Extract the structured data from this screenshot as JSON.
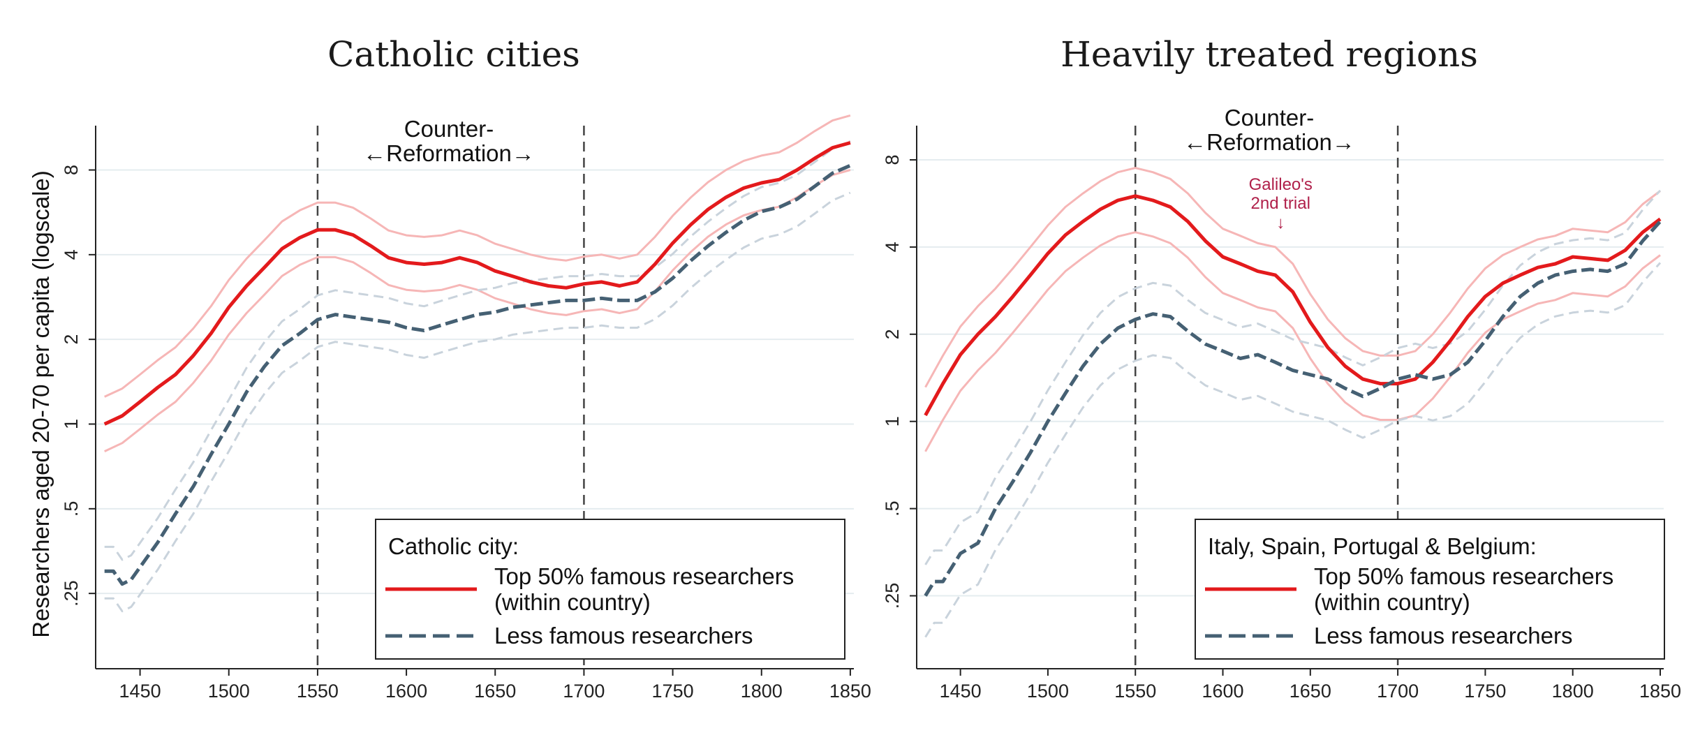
{
  "ylabel": "Researchers aged 20-70 per capita (logscale)",
  "colors": {
    "famous": "#e31a1c",
    "famous_ci": "#f6b6b6",
    "less": "#456073",
    "less_ci": "#c9d3dc",
    "grid": "#e4ecef",
    "vline": "#444444",
    "annotation": "#b0204a"
  },
  "chart_data": [
    {
      "type": "line",
      "title": "Catholic cities",
      "xlabel": "",
      "ylabel": "Researchers aged 20-70 per capita (logscale)",
      "yscale": "log",
      "xlim": [
        1425,
        1852
      ],
      "ylim": [
        0.135,
        11.5
      ],
      "xticks": [
        1450,
        1500,
        1550,
        1600,
        1650,
        1700,
        1750,
        1800,
        1850
      ],
      "yticks": [
        {
          "value": 0.25,
          "label": ".25"
        },
        {
          "value": 0.5,
          "label": ".5"
        },
        {
          "value": 1,
          "label": "1"
        },
        {
          "value": 2,
          "label": "2"
        },
        {
          "value": 4,
          "label": "4"
        },
        {
          "value": 8,
          "label": "8"
        }
      ],
      "grid": true,
      "vlines": [
        1550,
        1700
      ],
      "annotation": {
        "line1": "Counter-",
        "line2": "←Reformation→"
      },
      "legend": {
        "title": "Catholic city:",
        "items": [
          "Top 50% famous researchers",
          "(within country)",
          "Less famous researchers"
        ],
        "position": "bottom-right"
      },
      "series": [
        {
          "name": "Top 50% famous researchers (within country)",
          "style": "solid",
          "band": [
            0.8,
            1.25
          ],
          "x": [
            1430,
            1440,
            1450,
            1460,
            1470,
            1480,
            1490,
            1500,
            1510,
            1520,
            1530,
            1540,
            1550,
            1560,
            1570,
            1580,
            1590,
            1600,
            1610,
            1620,
            1630,
            1640,
            1650,
            1660,
            1670,
            1680,
            1690,
            1700,
            1710,
            1720,
            1730,
            1740,
            1750,
            1760,
            1770,
            1780,
            1790,
            1800,
            1810,
            1820,
            1830,
            1840,
            1850
          ],
          "y": [
            1.0,
            1.07,
            1.2,
            1.35,
            1.5,
            1.75,
            2.1,
            2.6,
            3.1,
            3.6,
            4.2,
            4.6,
            4.9,
            4.9,
            4.7,
            4.3,
            3.9,
            3.75,
            3.7,
            3.75,
            3.9,
            3.75,
            3.5,
            3.35,
            3.2,
            3.1,
            3.05,
            3.15,
            3.2,
            3.1,
            3.2,
            3.7,
            4.4,
            5.1,
            5.8,
            6.4,
            6.9,
            7.2,
            7.4,
            8.0,
            8.8,
            9.6,
            10.0
          ]
        },
        {
          "name": "Less famous researchers",
          "style": "dashed",
          "band": [
            0.8,
            1.22
          ],
          "x": [
            1430,
            1435,
            1440,
            1445,
            1450,
            1460,
            1470,
            1480,
            1490,
            1500,
            1510,
            1520,
            1530,
            1540,
            1550,
            1560,
            1570,
            1580,
            1590,
            1600,
            1610,
            1620,
            1630,
            1640,
            1650,
            1660,
            1670,
            1680,
            1690,
            1700,
            1710,
            1720,
            1730,
            1740,
            1750,
            1760,
            1770,
            1780,
            1790,
            1800,
            1810,
            1820,
            1830,
            1840,
            1850
          ],
          "y": [
            0.3,
            0.3,
            0.27,
            0.28,
            0.31,
            0.38,
            0.48,
            0.6,
            0.78,
            1.0,
            1.3,
            1.6,
            1.9,
            2.1,
            2.35,
            2.45,
            2.4,
            2.35,
            2.3,
            2.2,
            2.15,
            2.25,
            2.35,
            2.45,
            2.5,
            2.6,
            2.65,
            2.7,
            2.75,
            2.75,
            2.8,
            2.75,
            2.75,
            2.95,
            3.3,
            3.8,
            4.3,
            4.8,
            5.3,
            5.7,
            5.9,
            6.3,
            7.0,
            7.8,
            8.3
          ]
        }
      ]
    },
    {
      "type": "line",
      "title": "Heavily treated regions",
      "xlabel": "",
      "ylabel": "",
      "yscale": "log",
      "xlim": [
        1425,
        1852
      ],
      "ylim": [
        0.14,
        10.5
      ],
      "xticks": [
        1450,
        1500,
        1550,
        1600,
        1650,
        1700,
        1750,
        1800,
        1850
      ],
      "yticks": [
        {
          "value": 0.25,
          "label": ".25"
        },
        {
          "value": 0.5,
          "label": ".5"
        },
        {
          "value": 1,
          "label": "1"
        },
        {
          "value": 2,
          "label": "2"
        },
        {
          "value": 4,
          "label": "4"
        },
        {
          "value": 8,
          "label": "8"
        }
      ],
      "grid": true,
      "vlines": [
        1550,
        1700
      ],
      "annotation": {
        "line1": "Counter-",
        "line2": "←Reformation→"
      },
      "event": {
        "x": 1633,
        "label1": "Galileo's",
        "label2": "2nd trial",
        "arrow": "↓"
      },
      "legend": {
        "title": "Italy, Spain, Portugal & Belgium:",
        "items": [
          "Top 50% famous researchers",
          "(within country)",
          "Less famous researchers"
        ],
        "position": "bottom-right"
      },
      "series": [
        {
          "name": "Top 50% famous researchers (within country)",
          "style": "solid",
          "band": [
            0.75,
            1.25
          ],
          "x": [
            1430,
            1440,
            1450,
            1460,
            1470,
            1480,
            1490,
            1500,
            1510,
            1520,
            1530,
            1540,
            1550,
            1560,
            1570,
            1580,
            1590,
            1600,
            1610,
            1620,
            1630,
            1640,
            1650,
            1660,
            1670,
            1680,
            1690,
            1700,
            1710,
            1720,
            1730,
            1740,
            1750,
            1760,
            1770,
            1780,
            1790,
            1800,
            1810,
            1820,
            1830,
            1840,
            1850
          ],
          "y": [
            1.05,
            1.35,
            1.7,
            2.0,
            2.3,
            2.7,
            3.2,
            3.8,
            4.4,
            4.9,
            5.4,
            5.8,
            6.0,
            5.8,
            5.5,
            4.9,
            4.2,
            3.7,
            3.5,
            3.3,
            3.2,
            2.8,
            2.2,
            1.8,
            1.55,
            1.4,
            1.35,
            1.35,
            1.4,
            1.6,
            1.9,
            2.3,
            2.7,
            3.0,
            3.2,
            3.4,
            3.5,
            3.7,
            3.65,
            3.6,
            3.9,
            4.5,
            5.0
          ]
        },
        {
          "name": "Less famous researchers",
          "style": "dashed",
          "band": [
            0.72,
            1.28
          ],
          "x": [
            1430,
            1435,
            1440,
            1450,
            1460,
            1470,
            1480,
            1490,
            1500,
            1510,
            1520,
            1530,
            1540,
            1550,
            1560,
            1570,
            1580,
            1590,
            1600,
            1610,
            1620,
            1630,
            1640,
            1650,
            1660,
            1670,
            1680,
            1690,
            1700,
            1710,
            1720,
            1730,
            1740,
            1750,
            1760,
            1770,
            1780,
            1790,
            1800,
            1810,
            1820,
            1830,
            1840,
            1850
          ],
          "y": [
            0.25,
            0.28,
            0.28,
            0.35,
            0.38,
            0.5,
            0.62,
            0.78,
            1.0,
            1.25,
            1.55,
            1.85,
            2.1,
            2.25,
            2.35,
            2.3,
            2.05,
            1.85,
            1.75,
            1.65,
            1.7,
            1.6,
            1.5,
            1.45,
            1.4,
            1.3,
            1.22,
            1.3,
            1.4,
            1.45,
            1.4,
            1.45,
            1.6,
            1.9,
            2.3,
            2.7,
            3.0,
            3.2,
            3.3,
            3.35,
            3.3,
            3.5,
            4.2,
            4.9
          ]
        }
      ]
    }
  ]
}
